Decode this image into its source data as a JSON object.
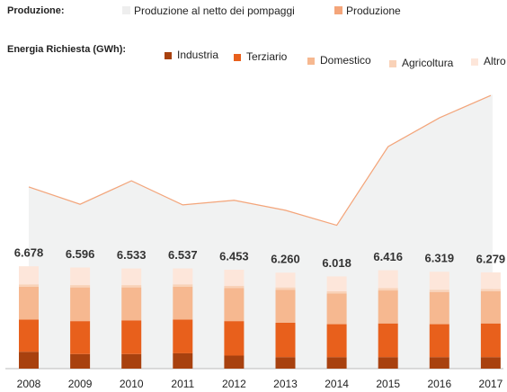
{
  "chart_data": {
    "type": "stacked_bar",
    "legend_titles": {
      "production": "Produzione:",
      "demand": "Energia Richiesta (GWh):"
    },
    "categories": [
      "2008",
      "2009",
      "2010",
      "2011",
      "2012",
      "2013",
      "2014",
      "2015",
      "2016",
      "2017"
    ],
    "ylim": [
      0,
      20000
    ],
    "area": {
      "name": "Produzione al netto dei pompaggi",
      "color": "#f1f2f2",
      "values": [
        11900,
        10780,
        12300,
        10720,
        11020,
        10370,
        9380,
        14530,
        16410,
        17870
      ]
    },
    "line": {
      "name": "Produzione",
      "color": "#f4a57a",
      "values": [
        11850,
        10720,
        12250,
        10680,
        10980,
        10330,
        9350,
        14480,
        16360,
        17820
      ]
    },
    "series": [
      {
        "name": "Industria",
        "color": "#a8410f",
        "values": [
          1100,
          950,
          950,
          1000,
          850,
          750,
          750,
          750,
          750,
          750
        ]
      },
      {
        "name": "Terziario",
        "color": "#e8601c",
        "values": [
          2100,
          2150,
          2200,
          2200,
          2250,
          2250,
          2150,
          2200,
          2150,
          2200
        ]
      },
      {
        "name": "Domestico",
        "color": "#f6b890",
        "values": [
          2150,
          2200,
          2150,
          2150,
          2150,
          2150,
          2000,
          2150,
          2100,
          2100
        ]
      },
      {
        "name": "Agricoltura",
        "color": "#f9d2b8",
        "values": [
          150,
          150,
          150,
          150,
          150,
          150,
          150,
          150,
          150,
          150
        ]
      },
      {
        "name": "Altro",
        "color": "#fde6da",
        "values": [
          1178,
          1146,
          1083,
          1037,
          1053,
          960,
          968,
          1166,
          1169,
          1079
        ]
      }
    ],
    "totals": {
      "values": [
        6678,
        6596,
        6533,
        6537,
        6453,
        6260,
        6018,
        6416,
        6319,
        6279
      ],
      "value_labels": [
        "6.678",
        "6.596",
        "6.533",
        "6.537",
        "6.453",
        "6.260",
        "6.018",
        "6.416",
        "6.319",
        "6.279"
      ]
    }
  }
}
